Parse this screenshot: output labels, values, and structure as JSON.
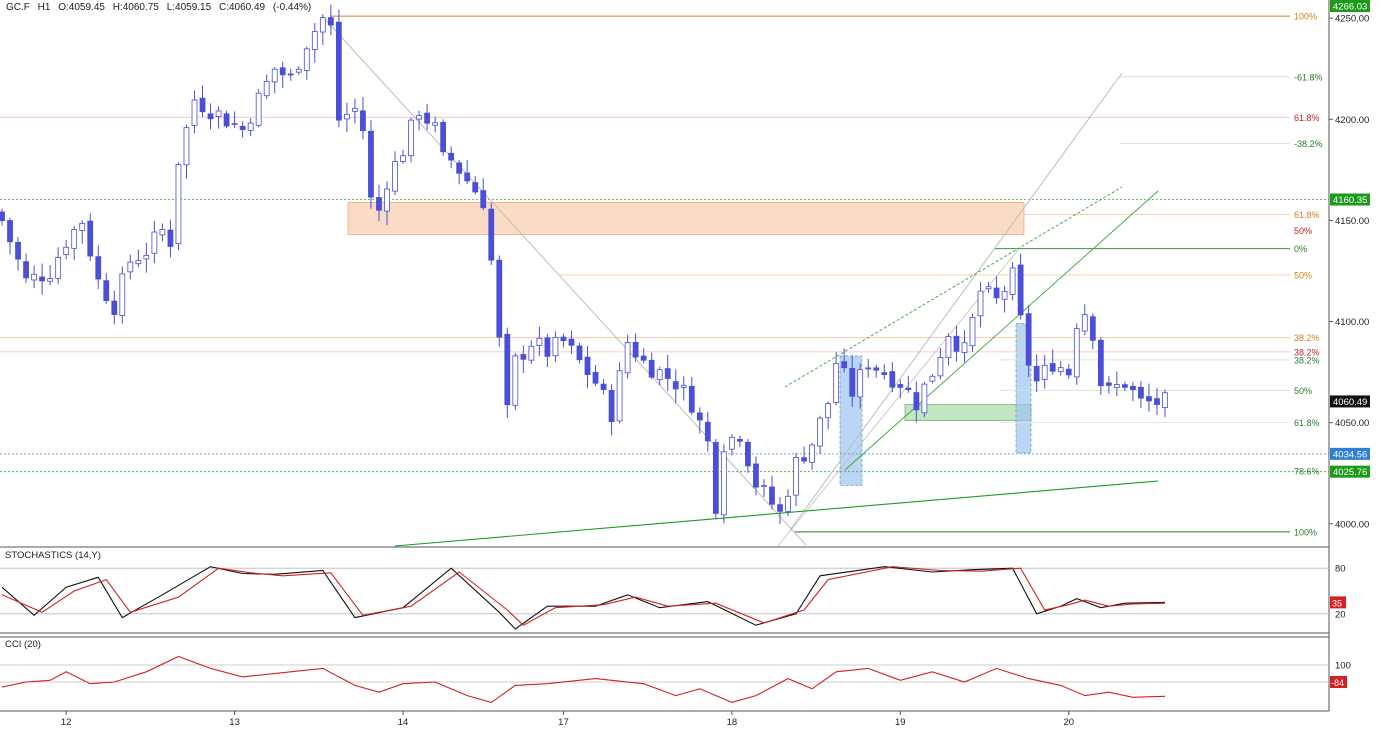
{
  "header": {
    "symbol": "GC.F",
    "timeframe": "H1",
    "open": "O:4059.45",
    "high": "H:4060.75",
    "low": "L:4059.15",
    "close": "C:4060.49",
    "change": "(-0.44%)"
  },
  "chart_data": {
    "type": "candlestick",
    "x_labels": [
      {
        "i": 8,
        "label": "12"
      },
      {
        "i": 29,
        "label": "13"
      },
      {
        "i": 50,
        "label": "14"
      },
      {
        "i": 70,
        "label": "17"
      },
      {
        "i": 91,
        "label": "18"
      },
      {
        "i": 112,
        "label": "19"
      },
      {
        "i": 133,
        "label": "20"
      }
    ],
    "y_ticks": [
      "4000.00",
      "4050.00",
      "4100.00",
      "4150.00",
      "4200.00",
      "4250.00"
    ],
    "y_tick_values": [
      4000,
      4050,
      4100,
      4150,
      4200,
      4250
    ],
    "ylim": [
      3989,
      4259
    ],
    "n_bars": 146,
    "close_path": [
      [
        0,
        4150
      ],
      [
        3,
        4120
      ],
      [
        6,
        4125
      ],
      [
        8,
        4140
      ],
      [
        10,
        4150
      ],
      [
        12,
        4120
      ],
      [
        14,
        4108
      ],
      [
        16,
        4130
      ],
      [
        18,
        4135
      ],
      [
        20,
        4145
      ],
      [
        21,
        4140
      ],
      [
        22,
        4180
      ],
      [
        24,
        4210
      ],
      [
        26,
        4205
      ],
      [
        28,
        4200
      ],
      [
        30,
        4195
      ],
      [
        32,
        4210
      ],
      [
        34,
        4225
      ],
      [
        36,
        4220
      ],
      [
        38,
        4238
      ],
      [
        40,
        4250
      ],
      [
        41,
        4245
      ],
      [
        42,
        4200
      ],
      [
        44,
        4205
      ],
      [
        45,
        4195
      ],
      [
        46,
        4160
      ],
      [
        47,
        4155
      ],
      [
        48,
        4170
      ],
      [
        50,
        4185
      ],
      [
        52,
        4205
      ],
      [
        54,
        4195
      ],
      [
        55,
        4180
      ],
      [
        56,
        4180
      ],
      [
        58,
        4170
      ],
      [
        60,
        4160
      ],
      [
        61,
        4130
      ],
      [
        62,
        4090
      ],
      [
        63,
        4055
      ],
      [
        64,
        4080
      ],
      [
        66,
        4090
      ],
      [
        68,
        4085
      ],
      [
        70,
        4090
      ],
      [
        72,
        4080
      ],
      [
        74,
        4070
      ],
      [
        76,
        4055
      ],
      [
        78,
        4090
      ],
      [
        80,
        4080
      ],
      [
        82,
        4075
      ],
      [
        84,
        4070
      ],
      [
        86,
        4060
      ],
      [
        88,
        4040
      ],
      [
        89,
        4010
      ],
      [
        90,
        4040
      ],
      [
        92,
        4045
      ],
      [
        94,
        4020
      ],
      [
        96,
        4010
      ],
      [
        97,
        4005
      ],
      [
        99,
        4030
      ],
      [
        101,
        4040
      ],
      [
        103,
        4060
      ],
      [
        104,
        4080
      ],
      [
        106,
        4065
      ],
      [
        108,
        4080
      ],
      [
        110,
        4075
      ],
      [
        112,
        4070
      ],
      [
        114,
        4060
      ],
      [
        116,
        4075
      ],
      [
        118,
        4095
      ],
      [
        120,
        4085
      ],
      [
        122,
        4115
      ],
      [
        124,
        4110
      ],
      [
        126,
        4122
      ],
      [
        127,
        4100
      ],
      [
        128,
        4080
      ],
      [
        129,
        4070
      ],
      [
        131,
        4080
      ],
      [
        133,
        4075
      ],
      [
        134,
        4100
      ],
      [
        135,
        4105
      ],
      [
        136,
        4095
      ],
      [
        137,
        4070
      ],
      [
        138,
        4065
      ],
      [
        140,
        4070
      ],
      [
        142,
        4060
      ],
      [
        144,
        4060
      ],
      [
        145,
        4060
      ]
    ],
    "last_price": "4060.49",
    "current_low_line": "4034.56",
    "price_badges": [
      {
        "value": "4266.03",
        "price": 4266.03,
        "color": "#1b9a1b"
      },
      {
        "value": "4160.35",
        "price": 4160.35,
        "color": "#1b9a1b"
      },
      {
        "value": "4025.76",
        "price": 4025.76,
        "color": "#1b9a1b"
      },
      {
        "value": "4034.56",
        "price": 4034.56,
        "color": "#2f7fd8"
      },
      {
        "value": "4060.49",
        "price": 4060.49,
        "color": "#111111"
      }
    ],
    "fibonacci_labels": [
      {
        "label": "100%",
        "price": 4251,
        "color": "#e07a1a"
      },
      {
        "label": "-61.8%",
        "price": 4221,
        "color": "#2a7a2a"
      },
      {
        "label": "61.8%",
        "price": 4201,
        "color": "#c02020"
      },
      {
        "label": "-38.2%",
        "price": 4188,
        "color": "#2a7a2a"
      },
      {
        "label": "61.8%",
        "price": 4153,
        "color": "#e07a1a"
      },
      {
        "label": "50%",
        "price": 4145,
        "color": "#c02020"
      },
      {
        "label": "0%",
        "price": 4136,
        "color": "#2a7a2a"
      },
      {
        "label": "50%",
        "price": 4123,
        "color": "#e07a1a"
      },
      {
        "label": "38.2%",
        "price": 4092,
        "color": "#e07a1a"
      },
      {
        "label": "38.2%",
        "price": 4085,
        "color": "#c02020"
      },
      {
        "label": "38.2%",
        "price": 4081,
        "color": "#2a7a2a"
      },
      {
        "label": "50%",
        "price": 4066,
        "color": "#2a7a2a"
      },
      {
        "label": "61.8%",
        "price": 4050,
        "color": "#2a7a2a"
      },
      {
        "label": "78.6%",
        "price": 4026,
        "color": "#2a7a2a"
      },
      {
        "label": "100%",
        "price": 3996,
        "color": "#2a7a2a"
      }
    ],
    "stochastics": {
      "title": "STOCHASTICS (14,Y)",
      "levels": [
        "80",
        "20"
      ],
      "value": "35",
      "k": [
        [
          0,
          55
        ],
        [
          4,
          18
        ],
        [
          8,
          55
        ],
        [
          12,
          68
        ],
        [
          15,
          15
        ],
        [
          20,
          45
        ],
        [
          26,
          82
        ],
        [
          30,
          73
        ],
        [
          34,
          72
        ],
        [
          40,
          77
        ],
        [
          44,
          15
        ],
        [
          50,
          28
        ],
        [
          56,
          80
        ],
        [
          62,
          22
        ],
        [
          64,
          0
        ],
        [
          68,
          30
        ],
        [
          74,
          30
        ],
        [
          78,
          45
        ],
        [
          82,
          28
        ],
        [
          88,
          36
        ],
        [
          94,
          5
        ],
        [
          99,
          20
        ],
        [
          102,
          70
        ],
        [
          110,
          82
        ],
        [
          116,
          75
        ],
        [
          121,
          78
        ],
        [
          126,
          80
        ],
        [
          129,
          20
        ],
        [
          132,
          30
        ],
        [
          134,
          40
        ],
        [
          137,
          28
        ],
        [
          140,
          34
        ],
        [
          145,
          35
        ]
      ],
      "d": [
        [
          0,
          45
        ],
        [
          5,
          22
        ],
        [
          9,
          50
        ],
        [
          13,
          65
        ],
        [
          16,
          22
        ],
        [
          22,
          42
        ],
        [
          27,
          80
        ],
        [
          31,
          74
        ],
        [
          35,
          70
        ],
        [
          41,
          74
        ],
        [
          45,
          18
        ],
        [
          51,
          30
        ],
        [
          57,
          75
        ],
        [
          63,
          25
        ],
        [
          65,
          5
        ],
        [
          69,
          28
        ],
        [
          75,
          32
        ],
        [
          79,
          42
        ],
        [
          83,
          30
        ],
        [
          89,
          34
        ],
        [
          95,
          8
        ],
        [
          100,
          25
        ],
        [
          103,
          65
        ],
        [
          111,
          82
        ],
        [
          117,
          77
        ],
        [
          122,
          76
        ],
        [
          127,
          80
        ],
        [
          130,
          25
        ],
        [
          133,
          32
        ],
        [
          135,
          38
        ],
        [
          138,
          30
        ],
        [
          141,
          33
        ],
        [
          145,
          34
        ]
      ]
    },
    "cci": {
      "title": "CCI (20)",
      "levels": [
        "100",
        "0"
      ],
      "value": "-84",
      "series": [
        [
          0,
          -30
        ],
        [
          3,
          0
        ],
        [
          6,
          10
        ],
        [
          8,
          60
        ],
        [
          11,
          -10
        ],
        [
          14,
          0
        ],
        [
          18,
          60
        ],
        [
          22,
          150
        ],
        [
          26,
          80
        ],
        [
          30,
          30
        ],
        [
          36,
          60
        ],
        [
          40,
          80
        ],
        [
          44,
          -20
        ],
        [
          47,
          -60
        ],
        [
          50,
          -10
        ],
        [
          54,
          0
        ],
        [
          58,
          -80
        ],
        [
          61,
          -120
        ],
        [
          64,
          -20
        ],
        [
          68,
          -10
        ],
        [
          74,
          20
        ],
        [
          80,
          -10
        ],
        [
          84,
          -80
        ],
        [
          87,
          -40
        ],
        [
          91,
          -120
        ],
        [
          94,
          -80
        ],
        [
          98,
          20
        ],
        [
          101,
          -40
        ],
        [
          104,
          60
        ],
        [
          108,
          80
        ],
        [
          112,
          10
        ],
        [
          116,
          60
        ],
        [
          120,
          0
        ],
        [
          124,
          80
        ],
        [
          128,
          20
        ],
        [
          132,
          -20
        ],
        [
          135,
          -80
        ],
        [
          138,
          -60
        ],
        [
          141,
          -90
        ],
        [
          145,
          -84
        ]
      ]
    }
  }
}
